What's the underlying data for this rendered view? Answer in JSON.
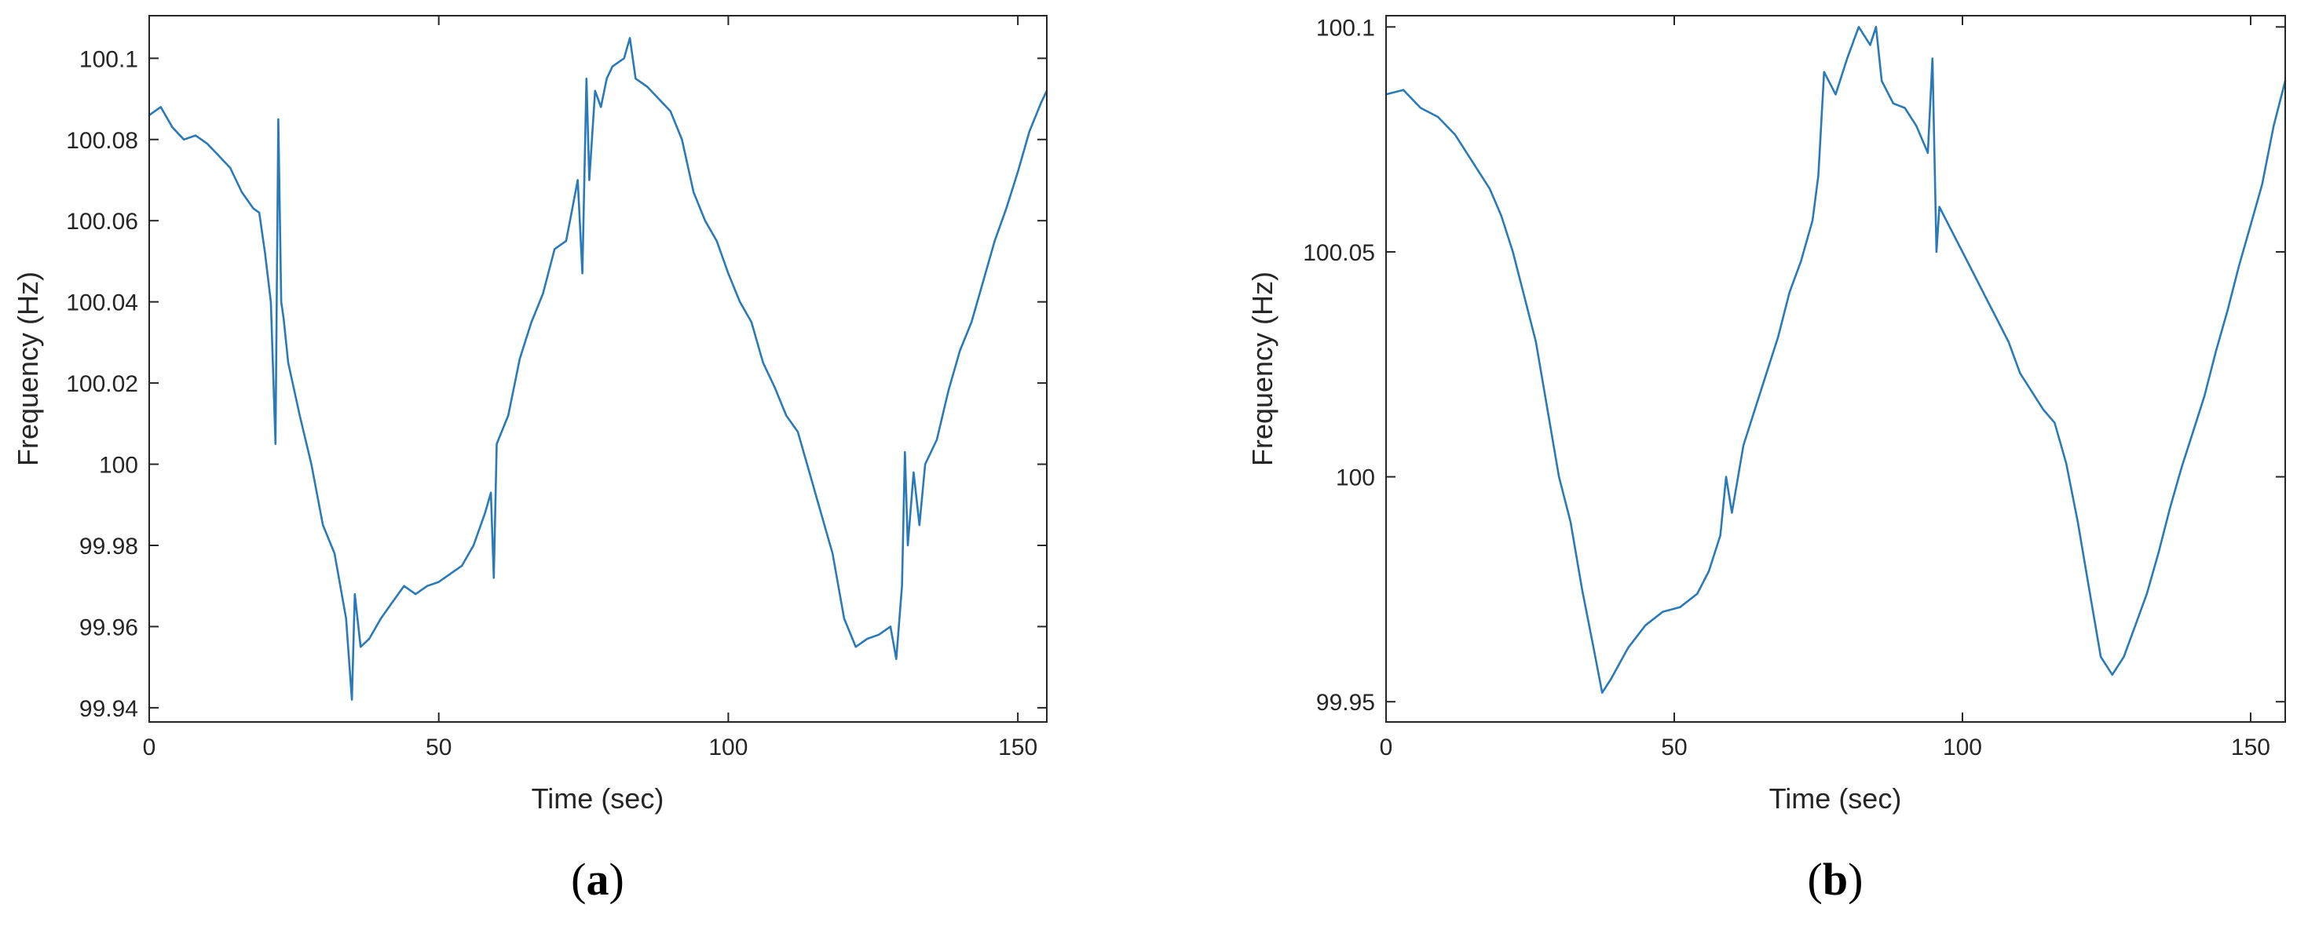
{
  "colors": {
    "series": "#2a7ab8",
    "axes": "#262626",
    "background": "#ffffff"
  },
  "chart_data": [
    {
      "type": "line",
      "caption_open": "(",
      "caption_letter": "a",
      "caption_close": ")",
      "xlabel": "Time (sec)",
      "ylabel": "Frequency (Hz)",
      "xlim": [
        0,
        155
      ],
      "ylim": [
        99.9365,
        100.1105
      ],
      "xticks": [
        0,
        50,
        100,
        150
      ],
      "xtick_labels": [
        "0",
        "50",
        "100",
        "150"
      ],
      "yticks": [
        99.94,
        99.96,
        99.98,
        100,
        100.02,
        100.04,
        100.06,
        100.08,
        100.1
      ],
      "ytick_labels": [
        "99.94",
        "99.96",
        "99.98",
        "100",
        "100.02",
        "100.04",
        "100.06",
        "100.08",
        "100.1"
      ],
      "grid": false,
      "series": [
        {
          "x": [
            0,
            2,
            4,
            6,
            8,
            10,
            12,
            14,
            16,
            18,
            19,
            20,
            21,
            21.8,
            22.3,
            22.8,
            23.2,
            24,
            26,
            28,
            30,
            32,
            34,
            35,
            35.5,
            36.5,
            38,
            40,
            42,
            44,
            46,
            48,
            50,
            52,
            54,
            56,
            58,
            59,
            59.5,
            60,
            62,
            64,
            66,
            68,
            70,
            72,
            74,
            74.8,
            75.5,
            76,
            77,
            78,
            79,
            80,
            82,
            83,
            84,
            86,
            88,
            90,
            92,
            94,
            96,
            98,
            100,
            102,
            104,
            106,
            108,
            110,
            112,
            114,
            116,
            118,
            120,
            122,
            124,
            126,
            128,
            129,
            130,
            130.5,
            131,
            132,
            133,
            134,
            136,
            138,
            140,
            142,
            144,
            146,
            148,
            150,
            152,
            154,
            155
          ],
          "y": [
            100.086,
            100.088,
            100.083,
            100.08,
            100.081,
            100.079,
            100.076,
            100.073,
            100.067,
            100.063,
            100.062,
            100.052,
            100.04,
            100.005,
            100.085,
            100.04,
            100.036,
            100.025,
            100.012,
            100.0,
            99.985,
            99.978,
            99.962,
            99.942,
            99.968,
            99.955,
            99.957,
            99.962,
            99.966,
            99.97,
            99.968,
            99.97,
            99.971,
            99.973,
            99.975,
            99.98,
            99.988,
            99.993,
            99.972,
            100.005,
            100.012,
            100.026,
            100.035,
            100.042,
            100.053,
            100.055,
            100.07,
            100.047,
            100.095,
            100.07,
            100.092,
            100.088,
            100.095,
            100.098,
            100.1,
            100.105,
            100.095,
            100.093,
            100.09,
            100.087,
            100.08,
            100.067,
            100.06,
            100.055,
            100.047,
            100.04,
            100.035,
            100.025,
            100.019,
            100.012,
            100.008,
            99.998,
            99.988,
            99.978,
            99.962,
            99.955,
            99.957,
            99.958,
            99.96,
            99.952,
            99.97,
            100.003,
            99.98,
            99.998,
            99.985,
            100.0,
            100.006,
            100.018,
            100.028,
            100.035,
            100.045,
            100.055,
            100.063,
            100.072,
            100.082,
            100.089,
            100.092
          ]
        }
      ]
    },
    {
      "type": "line",
      "caption_open": "(",
      "caption_letter": "b",
      "caption_close": ")",
      "xlabel": "Time (sec)",
      "ylabel": "Frequency (Hz)",
      "xlim": [
        0,
        156
      ],
      "ylim": [
        99.9455,
        100.1025
      ],
      "xticks": [
        0,
        50,
        100,
        150
      ],
      "xtick_labels": [
        "0",
        "50",
        "100",
        "150"
      ],
      "yticks": [
        99.95,
        100,
        100.05,
        100.1
      ],
      "ytick_labels": [
        "99.95",
        "100",
        "100.05",
        "100.1"
      ],
      "grid": false,
      "series": [
        {
          "x": [
            0,
            3,
            6,
            9,
            12,
            15,
            18,
            20,
            22,
            24,
            26,
            28,
            30,
            32,
            34,
            36,
            37.5,
            39,
            42,
            45,
            48,
            51,
            54,
            56,
            57,
            58,
            59,
            60,
            62,
            64,
            66,
            68,
            70,
            72,
            74,
            75,
            76,
            78,
            80,
            82,
            84,
            85,
            86,
            88,
            90,
            92,
            94,
            94.8,
            95.5,
            96,
            98,
            100,
            102,
            104,
            106,
            108,
            110,
            112,
            114,
            116,
            118,
            120,
            122,
            124,
            126,
            128,
            130,
            132,
            134,
            136,
            138,
            140,
            142,
            144,
            146,
            148,
            150,
            152,
            154,
            156
          ],
          "y": [
            100.085,
            100.086,
            100.082,
            100.08,
            100.076,
            100.07,
            100.064,
            100.058,
            100.05,
            100.04,
            100.03,
            100.015,
            100.0,
            99.99,
            99.975,
            99.962,
            99.952,
            99.955,
            99.962,
            99.967,
            99.97,
            99.971,
            99.974,
            99.979,
            99.983,
            99.987,
            100.0,
            99.992,
            100.007,
            100.015,
            100.023,
            100.031,
            100.041,
            100.048,
            100.057,
            100.067,
            100.09,
            100.085,
            100.093,
            100.1,
            100.096,
            100.1,
            100.088,
            100.083,
            100.082,
            100.078,
            100.072,
            100.093,
            100.05,
            100.06,
            100.055,
            100.05,
            100.045,
            100.04,
            100.035,
            100.03,
            100.023,
            100.019,
            100.015,
            100.012,
            100.003,
            99.99,
            99.975,
            99.96,
            99.956,
            99.96,
            99.967,
            99.974,
            99.983,
            99.993,
            100.002,
            100.01,
            100.018,
            100.028,
            100.037,
            100.047,
            100.056,
            100.065,
            100.078,
            100.088
          ]
        }
      ]
    }
  ]
}
